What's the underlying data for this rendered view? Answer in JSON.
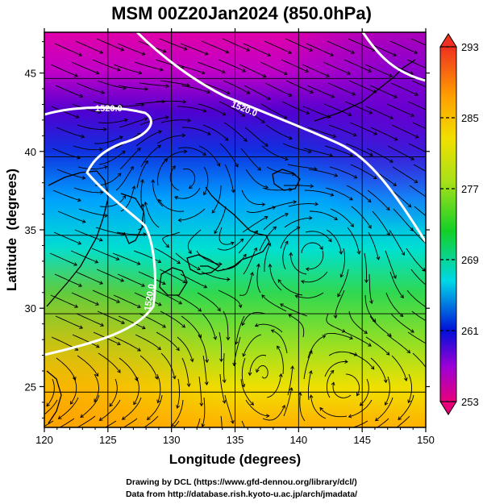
{
  "header": {
    "title": "MSM 00Z20Jan2024 (850.0hPa)"
  },
  "axes": {
    "xlabel": "Longitude (degrees)",
    "ylabel": "Latitude  (degrees)",
    "x_ticks": [
      "120",
      "125",
      "130",
      "135",
      "140",
      "145",
      "150"
    ],
    "y_ticks": [
      "25",
      "30",
      "35",
      "40",
      "45"
    ],
    "xlim": [
      120,
      150
    ],
    "ylim": [
      22.4,
      47.6
    ],
    "grid": true
  },
  "colorbar": {
    "tick_labels": [
      "293",
      "285",
      "277",
      "269",
      "261",
      "253"
    ],
    "range": [
      253,
      293
    ],
    "colors": [
      "#e8007a",
      "#9b00d8",
      "#0010d8",
      "#00d8e8",
      "#12d028",
      "#a8e018",
      "#f0e000",
      "#ffa000",
      "#f03020"
    ]
  },
  "contours": {
    "labels": [
      "1520.0",
      "1520.0",
      "1520.0"
    ],
    "line_color": "#ffffff"
  },
  "credits": {
    "line1": "Drawing by DCL (https://www.gfd-dennou.org/library/dcl/)",
    "line2": "Data from http://database.rish.kyoto-u.ac.jp/arch/jmadata/"
  }
}
